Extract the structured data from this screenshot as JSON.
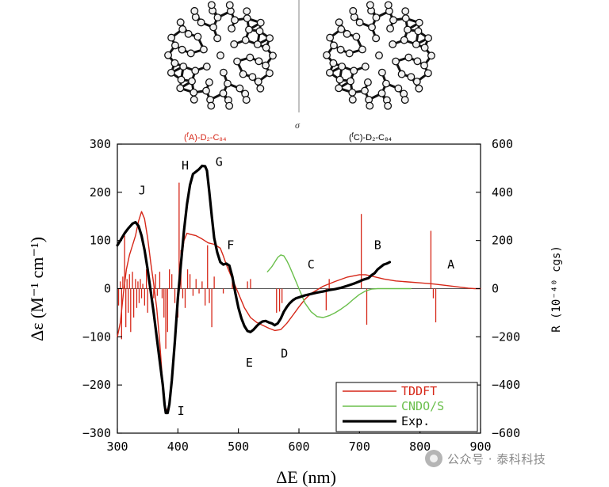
{
  "molecules": {
    "left_label": "(^fA)-D₂-C₈₄",
    "right_label": "(^fC)-D₂-C₈₄",
    "mirror_label": "σ",
    "left_color": "#d62718",
    "right_color": "#000000"
  },
  "chart_data": {
    "type": "line",
    "xlabel": "ΔE (nm)",
    "ylabel": "Δε (M⁻¹ cm⁻¹)",
    "y2label": "R (10⁻⁴⁰ cgs)",
    "xlim": [
      300,
      900
    ],
    "ylim": [
      -300,
      300
    ],
    "y2lim": [
      -600,
      600
    ],
    "xticks": [
      300,
      400,
      500,
      600,
      700,
      800,
      900
    ],
    "yticks": [
      -300,
      -200,
      -100,
      0,
      100,
      200,
      300
    ],
    "y2ticks": [
      -600,
      -400,
      -200,
      0,
      200,
      400,
      600
    ],
    "series": [
      {
        "name": "TDDFT",
        "color": "#d62718",
        "width": 1.4,
        "points": [
          [
            300,
            -100
          ],
          [
            305,
            -70
          ],
          [
            310,
            -10
          ],
          [
            315,
            40
          ],
          [
            320,
            70
          ],
          [
            325,
            90
          ],
          [
            330,
            110
          ],
          [
            335,
            140
          ],
          [
            340,
            160
          ],
          [
            345,
            145
          ],
          [
            350,
            105
          ],
          [
            355,
            55
          ],
          [
            360,
            10
          ],
          [
            365,
            -40
          ],
          [
            370,
            -110
          ],
          [
            375,
            -200
          ],
          [
            380,
            -255
          ],
          [
            385,
            -245
          ],
          [
            390,
            -190
          ],
          [
            395,
            -110
          ],
          [
            400,
            -30
          ],
          [
            405,
            50
          ],
          [
            410,
            100
          ],
          [
            415,
            115
          ],
          [
            420,
            113
          ],
          [
            430,
            110
          ],
          [
            440,
            103
          ],
          [
            450,
            95
          ],
          [
            460,
            92
          ],
          [
            470,
            84
          ],
          [
            475,
            68
          ],
          [
            480,
            50
          ],
          [
            490,
            20
          ],
          [
            500,
            -10
          ],
          [
            510,
            -40
          ],
          [
            520,
            -60
          ],
          [
            530,
            -70
          ],
          [
            540,
            -76
          ],
          [
            550,
            -82
          ],
          [
            560,
            -87
          ],
          [
            570,
            -85
          ],
          [
            580,
            -72
          ],
          [
            590,
            -55
          ],
          [
            600,
            -38
          ],
          [
            610,
            -22
          ],
          [
            620,
            -10
          ],
          [
            640,
            5
          ],
          [
            660,
            15
          ],
          [
            680,
            24
          ],
          [
            700,
            29
          ],
          [
            710,
            29
          ],
          [
            720,
            26
          ],
          [
            740,
            20
          ],
          [
            760,
            16
          ],
          [
            780,
            14
          ],
          [
            800,
            12
          ],
          [
            820,
            10
          ],
          [
            840,
            7
          ],
          [
            860,
            4
          ],
          [
            880,
            1
          ],
          [
            890,
            0
          ],
          [
            900,
            0
          ]
        ]
      },
      {
        "name": "CNDO/S",
        "color": "#6abf4b",
        "width": 1.4,
        "points": [
          [
            548,
            35
          ],
          [
            555,
            45
          ],
          [
            560,
            55
          ],
          [
            565,
            65
          ],
          [
            570,
            70
          ],
          [
            575,
            68
          ],
          [
            580,
            58
          ],
          [
            585,
            45
          ],
          [
            590,
            30
          ],
          [
            595,
            15
          ],
          [
            600,
            0
          ],
          [
            605,
            -15
          ],
          [
            610,
            -30
          ],
          [
            620,
            -48
          ],
          [
            630,
            -58
          ],
          [
            640,
            -60
          ],
          [
            650,
            -56
          ],
          [
            660,
            -50
          ],
          [
            670,
            -42
          ],
          [
            680,
            -33
          ],
          [
            690,
            -22
          ],
          [
            700,
            -12
          ],
          [
            710,
            -5
          ],
          [
            720,
            -1
          ],
          [
            730,
            0
          ],
          [
            760,
            0
          ],
          [
            785,
            0
          ]
        ]
      },
      {
        "name": "Exp.",
        "color": "#000000",
        "width": 3.2,
        "points": [
          [
            300,
            90
          ],
          [
            305,
            100
          ],
          [
            312,
            115
          ],
          [
            318,
            125
          ],
          [
            325,
            135
          ],
          [
            330,
            138
          ],
          [
            335,
            130
          ],
          [
            340,
            110
          ],
          [
            345,
            80
          ],
          [
            350,
            40
          ],
          [
            355,
            -5
          ],
          [
            360,
            -50
          ],
          [
            365,
            -100
          ],
          [
            370,
            -150
          ],
          [
            375,
            -200
          ],
          [
            378,
            -240
          ],
          [
            380,
            -258
          ],
          [
            383,
            -258
          ],
          [
            386,
            -240
          ],
          [
            390,
            -190
          ],
          [
            395,
            -110
          ],
          [
            400,
            -20
          ],
          [
            405,
            50
          ],
          [
            410,
            120
          ],
          [
            415,
            175
          ],
          [
            420,
            215
          ],
          [
            425,
            238
          ],
          [
            430,
            243
          ],
          [
            435,
            248
          ],
          [
            440,
            255
          ],
          [
            445,
            254
          ],
          [
            448,
            245
          ],
          [
            452,
            200
          ],
          [
            456,
            150
          ],
          [
            460,
            105
          ],
          [
            465,
            75
          ],
          [
            470,
            55
          ],
          [
            475,
            50
          ],
          [
            480,
            52
          ],
          [
            485,
            48
          ],
          [
            490,
            25
          ],
          [
            495,
            -10
          ],
          [
            500,
            -40
          ],
          [
            505,
            -62
          ],
          [
            510,
            -78
          ],
          [
            515,
            -88
          ],
          [
            520,
            -90
          ],
          [
            525,
            -85
          ],
          [
            530,
            -78
          ],
          [
            535,
            -72
          ],
          [
            540,
            -68
          ],
          [
            545,
            -67
          ],
          [
            550,
            -70
          ],
          [
            555,
            -72
          ],
          [
            560,
            -76
          ],
          [
            565,
            -72
          ],
          [
            570,
            -62
          ],
          [
            575,
            -48
          ],
          [
            580,
            -38
          ],
          [
            585,
            -30
          ],
          [
            590,
            -24
          ],
          [
            595,
            -20
          ],
          [
            600,
            -18
          ],
          [
            610,
            -14
          ],
          [
            620,
            -11
          ],
          [
            630,
            -8
          ],
          [
            640,
            -6
          ],
          [
            650,
            -3
          ],
          [
            660,
            -1
          ],
          [
            670,
            2
          ],
          [
            680,
            6
          ],
          [
            690,
            10
          ],
          [
            700,
            15
          ],
          [
            705,
            18
          ],
          [
            710,
            20
          ],
          [
            715,
            22
          ],
          [
            720,
            28
          ],
          [
            725,
            32
          ],
          [
            730,
            40
          ],
          [
            735,
            45
          ],
          [
            740,
            50
          ],
          [
            745,
            52
          ],
          [
            750,
            55
          ]
        ]
      }
    ],
    "rotatory_strengths": {
      "color": "#d62718",
      "sticks": [
        [
          302,
          -70
        ],
        [
          305,
          30
        ],
        [
          307,
          -210
        ],
        [
          309,
          50
        ],
        [
          312,
          220
        ],
        [
          314,
          -160
        ],
        [
          316,
          40
        ],
        [
          318,
          -100
        ],
        [
          320,
          60
        ],
        [
          322,
          -180
        ],
        [
          325,
          70
        ],
        [
          327,
          -120
        ],
        [
          330,
          40
        ],
        [
          332,
          -80
        ],
        [
          334,
          30
        ],
        [
          336,
          -60
        ],
        [
          338,
          40
        ],
        [
          340,
          -40
        ],
        [
          342,
          20
        ],
        [
          345,
          -70
        ],
        [
          348,
          80
        ],
        [
          350,
          -100
        ],
        [
          353,
          40
        ],
        [
          356,
          -20
        ],
        [
          360,
          -40
        ],
        [
          363,
          60
        ],
        [
          366,
          -30
        ],
        [
          370,
          70
        ],
        [
          374,
          -40
        ],
        [
          377,
          -120
        ],
        [
          380,
          -250
        ],
        [
          383,
          -180
        ],
        [
          386,
          80
        ],
        [
          390,
          60
        ],
        [
          395,
          -60
        ],
        [
          400,
          -120
        ],
        [
          402,
          440
        ],
        [
          405,
          160
        ],
        [
          408,
          -40
        ],
        [
          412,
          -80
        ],
        [
          416,
          80
        ],
        [
          420,
          60
        ],
        [
          425,
          -30
        ],
        [
          430,
          40
        ],
        [
          435,
          -20
        ],
        [
          440,
          30
        ],
        [
          445,
          -70
        ],
        [
          449,
          180
        ],
        [
          452,
          -60
        ],
        [
          456,
          -160
        ],
        [
          460,
          50
        ],
        [
          475,
          -20
        ],
        [
          490,
          30
        ],
        [
          515,
          30
        ],
        [
          520,
          40
        ],
        [
          563,
          -100
        ],
        [
          568,
          -95
        ],
        [
          572,
          -60
        ],
        [
          645,
          -90
        ],
        [
          650,
          40
        ],
        [
          703,
          310
        ],
        [
          712,
          -150
        ],
        [
          818,
          240
        ],
        [
          822,
          -40
        ],
        [
          826,
          -140
        ]
      ]
    },
    "annotations": [
      {
        "label": "A",
        "x": 851,
        "y": 42
      },
      {
        "label": "B",
        "x": 730,
        "y": 82
      },
      {
        "label": "C",
        "x": 620,
        "y": 42
      },
      {
        "label": "D",
        "x": 576,
        "y": -143
      },
      {
        "label": "E",
        "x": 518,
        "y": -162
      },
      {
        "label": "F",
        "x": 487,
        "y": 82
      },
      {
        "label": "G",
        "x": 468,
        "y": 255
      },
      {
        "label": "H",
        "x": 412,
        "y": 247
      },
      {
        "label": "I",
        "x": 405,
        "y": -262
      },
      {
        "label": "J",
        "x": 341,
        "y": 196
      }
    ],
    "legend_position": "bottom-right",
    "grid": false
  },
  "watermark": "公众号 · 泰科科技"
}
